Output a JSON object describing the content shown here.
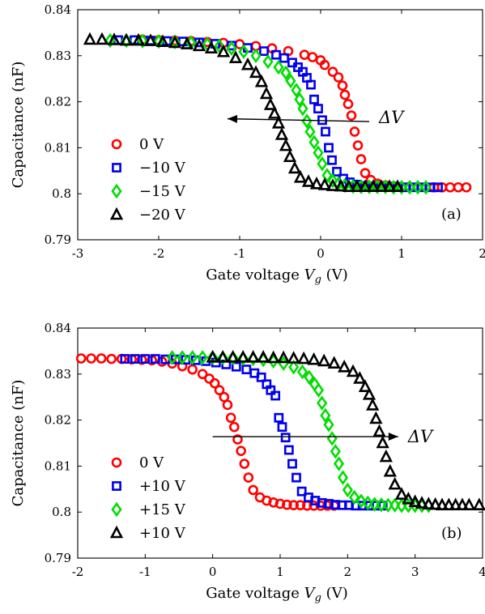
{
  "colors": {
    "series_0V": "#ff0000",
    "series_10V": "#0000ee",
    "series_15V": "#00dd00",
    "series_20V": "#000000"
  },
  "chart_data": [
    {
      "type": "scatter",
      "panel_label": "(a)",
      "xlabel_prefix": "Gate voltage ",
      "xlabel_symbol": "V",
      "xlabel_sub": "g",
      "xlabel_suffix": " (V)",
      "ylabel": "Capacitance (nF)",
      "xlim": [
        -3,
        2
      ],
      "ylim": [
        0.79,
        0.84
      ],
      "xticks": [
        -3,
        -2,
        -1,
        0,
        1,
        2
      ],
      "xtick_labels": [
        "-3",
        "-2",
        "-1",
        "0",
        "1",
        "2"
      ],
      "yticks": [
        0.79,
        0.8,
        0.81,
        0.82,
        0.83,
        0.84
      ],
      "ytick_labels": [
        "0.79",
        "0.8",
        "0.81",
        "0.82",
        "0.83",
        "0.84"
      ],
      "grid": false,
      "legend_position": "left",
      "annotation": {
        "text": "ΔV",
        "arrow": "left",
        "from": [
          0.6,
          0.8157
        ],
        "to": [
          -1.15,
          0.8163
        ]
      },
      "series": [
        {
          "name": "0 V",
          "marker": "circle",
          "color": "#ff0000",
          "x": [
            -2.2,
            -2.0,
            -1.8,
            -1.6,
            -1.4,
            -1.2,
            -1.0,
            -0.8,
            -0.6,
            -0.4,
            -0.2,
            -0.1,
            0.0,
            0.05,
            0.15,
            0.22,
            0.27,
            0.3,
            0.34,
            0.38,
            0.42,
            0.46,
            0.5,
            0.55,
            0.62,
            0.7,
            0.8,
            0.9,
            1.0,
            1.1,
            1.2,
            1.3,
            1.4,
            1.5,
            1.6,
            1.7,
            1.8
          ],
          "y": [
            0.8335,
            0.8334,
            0.8333,
            0.8332,
            0.833,
            0.8328,
            0.8325,
            0.8321,
            0.8316,
            0.831,
            0.8302,
            0.8297,
            0.829,
            0.828,
            0.8265,
            0.8253,
            0.8235,
            0.8215,
            0.8195,
            0.817,
            0.8135,
            0.8105,
            0.8075,
            0.8045,
            0.803,
            0.8022,
            0.8018,
            0.8016,
            0.8015,
            0.8015,
            0.8015,
            0.8014,
            0.8014,
            0.8014,
            0.8014,
            0.8014,
            0.8014
          ]
        },
        {
          "name": "−10 V",
          "marker": "square",
          "color": "#0000ee",
          "x": [
            -2.5,
            -2.3,
            -2.1,
            -1.9,
            -1.7,
            -1.5,
            -1.3,
            -1.1,
            -0.9,
            -0.7,
            -0.55,
            -0.45,
            -0.35,
            -0.28,
            -0.22,
            -0.17,
            -0.12,
            -0.08,
            -0.03,
            0.02,
            0.06,
            0.1,
            0.14,
            0.2,
            0.28,
            0.36,
            0.45,
            0.55,
            0.65,
            0.75,
            0.85,
            0.95,
            1.05,
            1.15,
            1.25,
            1.35,
            1.45
          ],
          "y": [
            0.8334,
            0.8334,
            0.8333,
            0.8332,
            0.8331,
            0.8329,
            0.8326,
            0.8322,
            0.8317,
            0.831,
            0.8302,
            0.8295,
            0.8285,
            0.8275,
            0.8265,
            0.8252,
            0.8237,
            0.8205,
            0.8185,
            0.816,
            0.8135,
            0.81,
            0.8073,
            0.8048,
            0.8033,
            0.8025,
            0.802,
            0.8017,
            0.8016,
            0.8015,
            0.8015,
            0.8015,
            0.8014,
            0.8014,
            0.8014,
            0.8014,
            0.8014
          ]
        },
        {
          "name": "−15 V",
          "marker": "diamond",
          "color": "#00dd00",
          "x": [
            -2.6,
            -2.4,
            -2.2,
            -2.0,
            -1.8,
            -1.6,
            -1.4,
            -1.25,
            -1.1,
            -0.95,
            -0.8,
            -0.65,
            -0.52,
            -0.43,
            -0.37,
            -0.3,
            -0.26,
            -0.22,
            -0.17,
            -0.13,
            -0.08,
            -0.03,
            0.02,
            0.08,
            0.15,
            0.22,
            0.3,
            0.4,
            0.5,
            0.6,
            0.7,
            0.8,
            0.9,
            1.0,
            1.1,
            1.2,
            1.3
          ],
          "y": [
            0.8333,
            0.8333,
            0.8332,
            0.8331,
            0.833,
            0.8328,
            0.8325,
            0.8321,
            0.8316,
            0.8309,
            0.83,
            0.8287,
            0.8275,
            0.8263,
            0.8245,
            0.8225,
            0.8205,
            0.8185,
            0.8158,
            0.8135,
            0.8112,
            0.8089,
            0.8065,
            0.804,
            0.8028,
            0.8022,
            0.8018,
            0.8016,
            0.8015,
            0.8015,
            0.8015,
            0.8015,
            0.8014,
            0.8014,
            0.8014,
            0.8014,
            0.8014
          ]
        },
        {
          "name": "−20 V",
          "marker": "triangle",
          "color": "#000000",
          "x": [
            -2.85,
            -2.7,
            -2.55,
            -2.4,
            -2.25,
            -2.1,
            -1.95,
            -1.8,
            -1.65,
            -1.5,
            -1.35,
            -1.2,
            -1.05,
            -0.9,
            -0.8,
            -0.73,
            -0.67,
            -0.62,
            -0.57,
            -0.52,
            -0.48,
            -0.43,
            -0.38,
            -0.32,
            -0.25,
            -0.15,
            -0.05,
            0.05,
            0.15,
            0.25,
            0.35,
            0.45,
            0.55,
            0.65,
            0.75,
            0.85,
            0.95
          ],
          "y": [
            0.8335,
            0.8335,
            0.8334,
            0.8333,
            0.8333,
            0.8332,
            0.833,
            0.8328,
            0.8325,
            0.8321,
            0.8316,
            0.8308,
            0.8295,
            0.828,
            0.8263,
            0.8243,
            0.8217,
            0.8193,
            0.8174,
            0.8153,
            0.8128,
            0.8104,
            0.808,
            0.8055,
            0.8035,
            0.8026,
            0.8021,
            0.8019,
            0.8017,
            0.8016,
            0.8015,
            0.8015,
            0.8015,
            0.8015,
            0.8015,
            0.8015,
            0.8015
          ]
        }
      ]
    },
    {
      "type": "scatter",
      "panel_label": "(b)",
      "xlabel_prefix": "Gate voltage ",
      "xlabel_symbol": "V",
      "xlabel_sub": "g",
      "xlabel_suffix": " (V)",
      "ylabel": "Capacitance (nF)",
      "xlim": [
        -2,
        4
      ],
      "ylim": [
        0.79,
        0.84
      ],
      "xticks": [
        -2,
        -1,
        0,
        1,
        2,
        3,
        4
      ],
      "xtick_labels": [
        "-2",
        "-1",
        "0",
        "1",
        "2",
        "3",
        "4"
      ],
      "yticks": [
        0.79,
        0.8,
        0.81,
        0.82,
        0.83,
        0.84
      ],
      "ytick_labels": [
        "0.79",
        "0.8",
        "0.81",
        "0.82",
        "0.83",
        "0.84"
      ],
      "grid": false,
      "legend_position": "left",
      "annotation": {
        "text": "ΔV",
        "arrow": "right",
        "from": [
          0.0,
          0.8164
        ],
        "to": [
          2.75,
          0.8164
        ]
      },
      "series": [
        {
          "name": "0 V",
          "marker": "circle",
          "color": "#ff0000",
          "x": [
            -1.95,
            -1.8,
            -1.65,
            -1.5,
            -1.35,
            -1.2,
            -1.05,
            -0.9,
            -0.75,
            -0.6,
            -0.45,
            -0.3,
            -0.15,
            -0.05,
            0.03,
            0.1,
            0.17,
            0.22,
            0.27,
            0.32,
            0.37,
            0.42,
            0.47,
            0.53,
            0.6,
            0.7,
            0.8,
            0.9,
            1.0,
            1.1,
            1.2,
            1.3,
            1.4,
            1.5,
            1.6,
            1.7,
            1.8
          ],
          "y": [
            0.8334,
            0.8334,
            0.8334,
            0.8333,
            0.8333,
            0.8332,
            0.8331,
            0.833,
            0.8327,
            0.8323,
            0.8317,
            0.831,
            0.83,
            0.829,
            0.828,
            0.8265,
            0.825,
            0.8233,
            0.8205,
            0.8185,
            0.8158,
            0.8133,
            0.8105,
            0.8075,
            0.8048,
            0.8032,
            0.8025,
            0.8021,
            0.8018,
            0.8016,
            0.8015,
            0.8015,
            0.8014,
            0.8014,
            0.8014,
            0.8014,
            0.8014
          ]
        },
        {
          "name": "+10 V",
          "marker": "square",
          "color": "#0000ee",
          "x": [
            -1.3,
            -1.15,
            -1.0,
            -0.85,
            -0.7,
            -0.55,
            -0.4,
            -0.25,
            -0.1,
            0.05,
            0.2,
            0.35,
            0.5,
            0.62,
            0.72,
            0.8,
            0.86,
            0.93,
            0.98,
            1.03,
            1.08,
            1.13,
            1.18,
            1.24,
            1.32,
            1.42,
            1.52,
            1.62,
            1.72,
            1.82,
            1.92,
            2.02,
            2.12,
            2.22,
            2.32,
            2.42,
            2.52
          ],
          "y": [
            0.8333,
            0.8333,
            0.8333,
            0.8333,
            0.8332,
            0.8332,
            0.8331,
            0.833,
            0.8328,
            0.8325,
            0.8321,
            0.8316,
            0.831,
            0.8302,
            0.8293,
            0.8278,
            0.8265,
            0.8253,
            0.8205,
            0.8185,
            0.8162,
            0.8135,
            0.8105,
            0.8075,
            0.8045,
            0.8032,
            0.8025,
            0.802,
            0.8018,
            0.8016,
            0.8015,
            0.8015,
            0.8014,
            0.8014,
            0.8014,
            0.8014,
            0.8014
          ]
        },
        {
          "name": "+15 V",
          "marker": "diamond",
          "color": "#00dd00",
          "x": [
            -0.6,
            -0.45,
            -0.3,
            -0.15,
            0.0,
            0.15,
            0.3,
            0.45,
            0.6,
            0.75,
            0.9,
            1.05,
            1.2,
            1.33,
            1.43,
            1.51,
            1.57,
            1.62,
            1.67,
            1.72,
            1.77,
            1.82,
            1.87,
            1.93,
            2.0,
            2.1,
            2.2,
            2.3,
            2.4,
            2.5,
            2.6,
            2.7,
            2.8,
            2.9,
            3.0,
            3.1,
            3.2
          ],
          "y": [
            0.8336,
            0.8336,
            0.8336,
            0.8336,
            0.8336,
            0.8335,
            0.8335,
            0.8334,
            0.8333,
            0.8331,
            0.8328,
            0.8323,
            0.8315,
            0.8305,
            0.8293,
            0.8278,
            0.8265,
            0.8237,
            0.821,
            0.819,
            0.816,
            0.8132,
            0.8105,
            0.8075,
            0.8048,
            0.8032,
            0.8024,
            0.802,
            0.8017,
            0.8016,
            0.8015,
            0.8015,
            0.8014,
            0.8014,
            0.8014,
            0.8014,
            0.8014
          ]
        },
        {
          "name": "+10 V",
          "marker": "triangle",
          "color": "#000000",
          "x": [
            0.0,
            0.15,
            0.3,
            0.45,
            0.6,
            0.75,
            0.9,
            1.05,
            1.2,
            1.35,
            1.5,
            1.65,
            1.8,
            1.95,
            2.08,
            2.18,
            2.26,
            2.32,
            2.37,
            2.42,
            2.47,
            2.52,
            2.57,
            2.63,
            2.7,
            2.8,
            2.9,
            3.0,
            3.1,
            3.2,
            3.3,
            3.4,
            3.5,
            3.6,
            3.7,
            3.8,
            3.95
          ],
          "y": [
            0.8336,
            0.8336,
            0.8336,
            0.8336,
            0.8336,
            0.8336,
            0.8335,
            0.8335,
            0.8334,
            0.8333,
            0.8331,
            0.8328,
            0.8323,
            0.8315,
            0.8305,
            0.829,
            0.8272,
            0.8255,
            0.8232,
            0.8203,
            0.8175,
            0.815,
            0.812,
            0.8088,
            0.806,
            0.8038,
            0.8028,
            0.8022,
            0.8019,
            0.8017,
            0.8016,
            0.8015,
            0.8015,
            0.8015,
            0.8015,
            0.8015,
            0.8015
          ]
        }
      ]
    }
  ]
}
